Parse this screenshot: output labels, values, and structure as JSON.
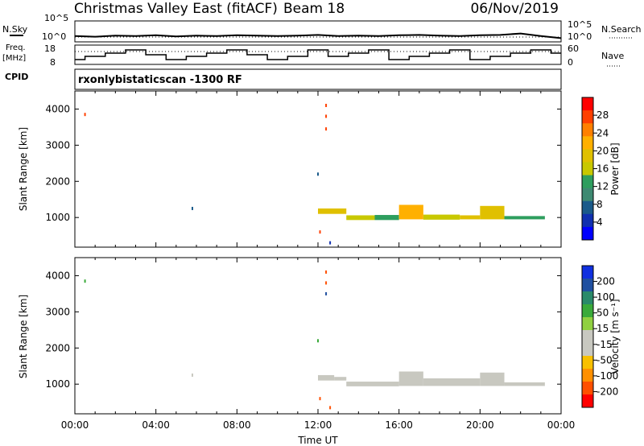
{
  "header": {
    "title": "Christmas Valley East (fitACF)",
    "beam": "Beam 18",
    "date": "06/Nov/2019"
  },
  "labels": {
    "nsky": "N.Sky",
    "nsearch": "N.Search",
    "freq": "Freq.",
    "freq_unit": "[MHz]",
    "nave": "Nave",
    "cpid": "CPID",
    "cpid_value": "rxonlybistaticscan -1300 RF",
    "slant_range": "Slant Range [km]",
    "time_axis": "Time UT",
    "power_label": "Power [dB]",
    "velocity_label": "Velocity [m s⁻¹]"
  },
  "noise_axis": {
    "left_ticks": [
      "10^5",
      "10^0"
    ],
    "right_ticks": [
      "10^5",
      "10^0"
    ]
  },
  "freq_axis": {
    "left_ticks": [
      "18",
      "8"
    ],
    "right_ticks": [
      "60",
      "0"
    ]
  },
  "colorbar_power": {
    "ticks": [
      "28",
      "24",
      "20",
      "16",
      "12",
      "8",
      "4"
    ],
    "colors": [
      "#ff0000",
      "#ff4000",
      "#ff8000",
      "#ffb000",
      "#e0c000",
      "#c8c800",
      "#2e9e5e",
      "#3e8a72",
      "#1a5a8a",
      "#1030b0",
      "#0000ff"
    ]
  },
  "colorbar_velocity": {
    "ticks": [
      "200",
      "100",
      "50",
      "15",
      "-15",
      "-50",
      "-100",
      "-200"
    ],
    "colors": [
      "#1030e0",
      "#2050a0",
      "#2a8a6a",
      "#3aaa3a",
      "#90d040",
      "#c8c8c0",
      "#c8c8c0",
      "#f8c000",
      "#ff9000",
      "#ff5000",
      "#ff0000"
    ]
  },
  "chart_data": [
    {
      "type": "line",
      "panel": "noise",
      "series": [
        {
          "name": "N.Sky",
          "style": "solid",
          "x": [
            0,
            1,
            2,
            3,
            4,
            5,
            6,
            7,
            8,
            9,
            10,
            11,
            12,
            13,
            14,
            15,
            16,
            17,
            18,
            19,
            20,
            21,
            22,
            23,
            24
          ],
          "values": [
            1.2,
            1.0,
            1.3,
            1.2,
            1.4,
            1.1,
            1.3,
            1.2,
            1.4,
            1.3,
            1.2,
            1.3,
            1.5,
            1.2,
            1.3,
            1.2,
            1.4,
            1.5,
            1.3,
            1.2,
            1.4,
            1.5,
            1.9,
            1.2,
            0.6
          ]
        },
        {
          "name": "N.Search",
          "style": "dotted",
          "x": [
            0,
            4,
            8,
            12,
            16,
            20,
            24
          ],
          "values": [
            0.9,
            0.9,
            0.9,
            0.9,
            0.9,
            0.9,
            0.9
          ]
        }
      ],
      "ylim": [
        0,
        5
      ],
      "xlim": [
        0,
        24
      ]
    },
    {
      "type": "line",
      "panel": "frequency",
      "series": [
        {
          "name": "Freq.",
          "style": "step",
          "x": [
            0,
            0.5,
            1.5,
            2.5,
            3.5,
            4.5,
            5.5,
            6.5,
            7.5,
            8.5,
            9.5,
            10.5,
            11.5,
            12.5,
            13.5,
            14.5,
            15.5,
            16.5,
            17.5,
            18.5,
            19.5,
            20.5,
            21.5,
            22.5,
            23.5
          ],
          "values": [
            10,
            12,
            14,
            16,
            13,
            10,
            12,
            14,
            16,
            13,
            10,
            12,
            16,
            12,
            14,
            16,
            10,
            12,
            14,
            16,
            10,
            12,
            14,
            16,
            14
          ]
        },
        {
          "name": "Nave",
          "style": "dotted",
          "x": [
            0,
            4,
            8,
            12,
            16,
            20,
            24
          ],
          "values": [
            42,
            42,
            42,
            42,
            42,
            42,
            42
          ]
        }
      ],
      "ylim_left": [
        8,
        18
      ],
      "ylim_right": [
        0,
        60
      ]
    },
    {
      "type": "heatmap",
      "panel": "power",
      "xlabel": "Time UT",
      "ylabel": "Slant Range [km]",
      "xlim": [
        0,
        24
      ],
      "ylim": [
        180,
        4500
      ],
      "yticks": [
        1000,
        2000,
        3000,
        4000
      ],
      "cells": [
        {
          "t": 12.0,
          "t2": 13.4,
          "r": 1100,
          "r2": 1250,
          "v": 18
        },
        {
          "t": 13.4,
          "t2": 14.8,
          "r": 930,
          "r2": 1060,
          "v": 16
        },
        {
          "t": 14.8,
          "t2": 16.0,
          "r": 930,
          "r2": 1070,
          "v": 14
        },
        {
          "t": 16.0,
          "t2": 17.2,
          "r": 950,
          "r2": 1350,
          "v": 22
        },
        {
          "t": 17.2,
          "t2": 19.0,
          "r": 940,
          "r2": 1080,
          "v": 17
        },
        {
          "t": 19.0,
          "t2": 20.0,
          "r": 950,
          "r2": 1060,
          "v": 19
        },
        {
          "t": 20.0,
          "t2": 21.2,
          "r": 950,
          "r2": 1320,
          "v": 20
        },
        {
          "t": 21.2,
          "t2": 23.2,
          "r": 950,
          "r2": 1040,
          "v": 13
        }
      ],
      "points": [
        {
          "t": 0.5,
          "r": 3850,
          "v": 28
        },
        {
          "t": 5.8,
          "r": 1250,
          "v": 6
        },
        {
          "t": 12.0,
          "r": 2200,
          "v": 8
        },
        {
          "t": 12.4,
          "r": 4100,
          "v": 28
        },
        {
          "t": 12.4,
          "r": 3800,
          "v": 28
        },
        {
          "t": 12.4,
          "r": 3450,
          "v": 28
        },
        {
          "t": 12.1,
          "r": 600,
          "v": 28
        },
        {
          "t": 12.6,
          "r": 300,
          "v": 4
        }
      ]
    },
    {
      "type": "heatmap",
      "panel": "velocity",
      "xlabel": "Time UT",
      "ylabel": "Slant Range [km]",
      "xlim": [
        0,
        24
      ],
      "ylim": [
        180,
        4500
      ],
      "yticks": [
        1000,
        2000,
        3000,
        4000
      ],
      "xticks": [
        "00:00",
        "04:00",
        "08:00",
        "12:00",
        "16:00",
        "20:00",
        "00:00"
      ],
      "cells": [
        {
          "t": 12.0,
          "t2": 12.8,
          "r": 1100,
          "r2": 1250,
          "v": -40
        },
        {
          "t": 12.8,
          "t2": 13.4,
          "r": 1100,
          "r2": 1200,
          "v": 0
        },
        {
          "t": 13.4,
          "t2": 16.0,
          "r": 940,
          "r2": 1070,
          "v": 0
        },
        {
          "t": 16.0,
          "t2": 17.2,
          "r": 950,
          "r2": 1350,
          "v": 0
        },
        {
          "t": 17.2,
          "t2": 20.0,
          "r": 950,
          "r2": 1160,
          "v": 0
        },
        {
          "t": 20.0,
          "t2": 21.2,
          "r": 950,
          "r2": 1320,
          "v": 0
        },
        {
          "t": 21.2,
          "t2": 23.2,
          "r": 950,
          "r2": 1050,
          "v": 0
        }
      ],
      "points": [
        {
          "t": 0.5,
          "r": 3850,
          "v": 100
        },
        {
          "t": 5.8,
          "r": 1250,
          "v": 0
        },
        {
          "t": 12.0,
          "r": 2200,
          "v": 100
        },
        {
          "t": 12.4,
          "r": 4100,
          "v": -200
        },
        {
          "t": 12.4,
          "r": 3800,
          "v": -200
        },
        {
          "t": 12.4,
          "r": 3500,
          "v": 200
        },
        {
          "t": 12.1,
          "r": 600,
          "v": -200
        },
        {
          "t": 12.6,
          "r": 350,
          "v": -200
        }
      ]
    }
  ]
}
